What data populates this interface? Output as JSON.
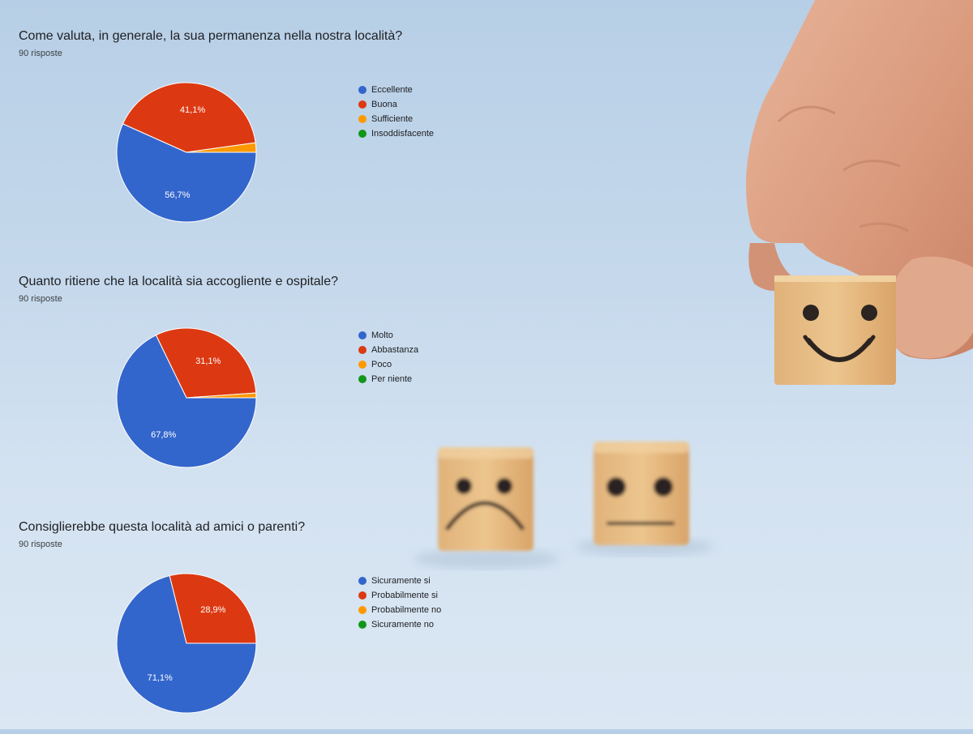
{
  "colors": {
    "blue": "#3366cc",
    "red": "#dc3912",
    "orange": "#ff9900",
    "green": "#109618"
  },
  "decor": {
    "icons": [
      "hand-icon",
      "smiley-cube-icon",
      "sad-cube-icon",
      "neutral-cube-icon"
    ]
  },
  "chart_data": [
    {
      "type": "pie",
      "title": "Come valuta, in generale, la sua permanenza nella nostra località?",
      "subtitle": "90 risposte",
      "categories": [
        "Eccellente",
        "Buona",
        "Sufficiente",
        "Insoddisfacente"
      ],
      "values": [
        56.7,
        41.1,
        2.2,
        0
      ],
      "labels": [
        "56,7%",
        "41,1%",
        "",
        ""
      ],
      "colors": [
        "#3366cc",
        "#dc3912",
        "#ff9900",
        "#109618"
      ],
      "legend": "right"
    },
    {
      "type": "pie",
      "title": "Quanto ritiene che la località sia accogliente e ospitale?",
      "subtitle": "90 risposte",
      "categories": [
        "Molto",
        "Abbastanza",
        "Poco",
        "Per niente"
      ],
      "values": [
        67.8,
        31.1,
        1.1,
        0
      ],
      "labels": [
        "67,8%",
        "31,1%",
        "",
        ""
      ],
      "colors": [
        "#3366cc",
        "#dc3912",
        "#ff9900",
        "#109618"
      ],
      "legend": "right"
    },
    {
      "type": "pie",
      "title": "Consiglierebbe questa località ad amici o parenti?",
      "subtitle": "90 risposte",
      "categories": [
        "Sicuramente si",
        "Probabilmente si",
        "Probabilmente no",
        "Sicuramente no"
      ],
      "values": [
        71.1,
        28.9,
        0,
        0
      ],
      "labels": [
        "71,1%",
        "28,9%",
        "",
        ""
      ],
      "colors": [
        "#3366cc",
        "#dc3912",
        "#ff9900",
        "#109618"
      ],
      "legend": "right"
    }
  ]
}
